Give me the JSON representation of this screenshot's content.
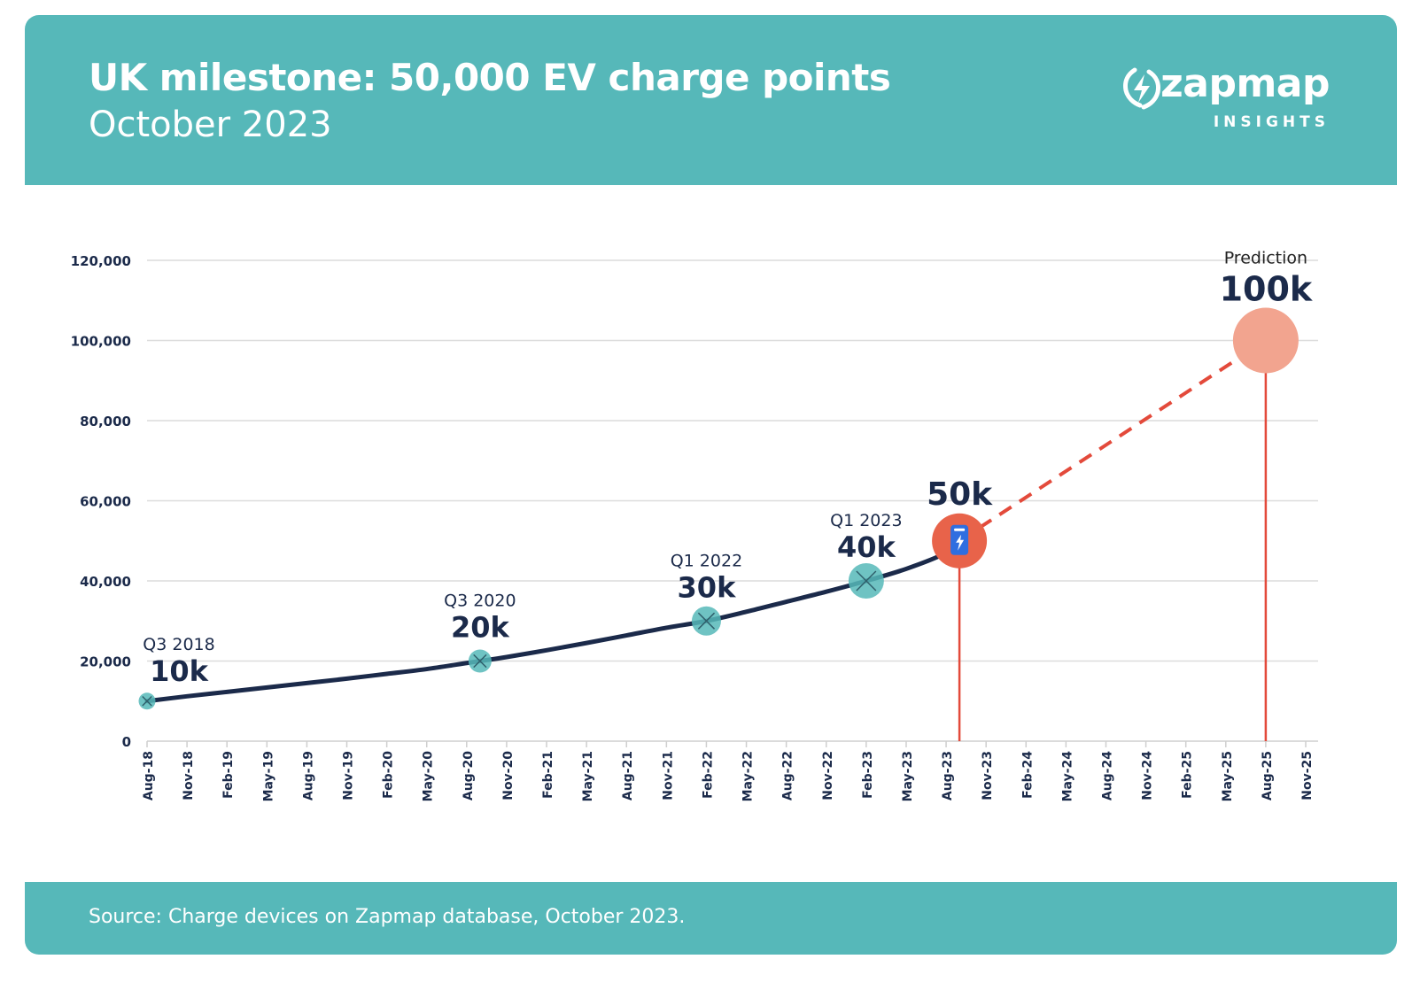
{
  "header": {
    "title": "UK milestone: 50,000 EV charge points",
    "subtitle": "October 2023",
    "brand_name": "zapmap",
    "brand_sub": "INSIGHTS"
  },
  "footer": {
    "source": "Source: Charge devices on Zapmap database, October 2023."
  },
  "colors": {
    "header_bg": "#56b8b9",
    "line": "#1b2a4a",
    "milestone_marker": "#56b8b9",
    "current_marker": "#e8634a",
    "prediction_marker": "#f2a48f",
    "prediction_line": "#e34a3b",
    "grid": "#dcdcdc"
  },
  "chart_data": {
    "type": "line",
    "xlabel": "",
    "ylabel": "",
    "ylim": [
      0,
      120000
    ],
    "yticks": [
      0,
      20000,
      40000,
      60000,
      80000,
      100000,
      120000
    ],
    "ytick_labels": [
      "0",
      "20,000",
      "40,000",
      "60,000",
      "80,000",
      "100,000",
      "120,000"
    ],
    "x_categories": [
      "Aug-18",
      "Nov-18",
      "Feb-19",
      "May-19",
      "Aug-19",
      "Nov-19",
      "Feb-20",
      "May-20",
      "Aug-20",
      "Nov-20",
      "Feb-21",
      "May-21",
      "Aug-21",
      "Nov-21",
      "Feb-22",
      "May-22",
      "Aug-22",
      "Nov-22",
      "Feb-23",
      "May-23",
      "Aug-23",
      "Nov-23",
      "Feb-24",
      "May-24",
      "Aug-24",
      "Nov-24",
      "Feb-25",
      "May-25",
      "Aug-25",
      "Nov-25"
    ],
    "grid": true,
    "series": [
      {
        "style": "solid",
        "points": [
          {
            "x": "Aug-18",
            "y": 10000
          },
          {
            "x": "Nov-18",
            "y": 11200
          },
          {
            "x": "Feb-19",
            "y": 12300
          },
          {
            "x": "May-19",
            "y": 13400
          },
          {
            "x": "Aug-19",
            "y": 14500
          },
          {
            "x": "Nov-19",
            "y": 15600
          },
          {
            "x": "Feb-20",
            "y": 16800
          },
          {
            "x": "May-20",
            "y": 18000
          },
          {
            "x": "Aug-20",
            "y": 19500
          },
          {
            "x": "Sep-20",
            "y": 20000
          },
          {
            "x": "Nov-20",
            "y": 21000
          },
          {
            "x": "Feb-21",
            "y": 22700
          },
          {
            "x": "May-21",
            "y": 24500
          },
          {
            "x": "Aug-21",
            "y": 26400
          },
          {
            "x": "Nov-21",
            "y": 28300
          },
          {
            "x": "Feb-22",
            "y": 30000
          },
          {
            "x": "May-22",
            "y": 32300
          },
          {
            "x": "Aug-22",
            "y": 34800
          },
          {
            "x": "Nov-22",
            "y": 37300
          },
          {
            "x": "Feb-23",
            "y": 40000
          },
          {
            "x": "May-23",
            "y": 43000
          },
          {
            "x": "Aug-23",
            "y": 47000
          },
          {
            "x": "Sep-23",
            "y": 50000
          }
        ]
      },
      {
        "style": "dashed",
        "points": [
          {
            "x": "Sep-23",
            "y": 50000
          },
          {
            "x": "Aug-25",
            "y": 100000
          }
        ]
      }
    ],
    "annotations": [
      {
        "x": "Aug-18",
        "y": 10000,
        "label": "Q3 2018",
        "value": "10k",
        "marker": "milestone"
      },
      {
        "x": "Sep-20",
        "y": 20000,
        "label": "Q3 2020",
        "value": "20k",
        "marker": "milestone"
      },
      {
        "x": "Feb-22",
        "y": 30000,
        "label": "Q1 2022",
        "value": "30k",
        "marker": "milestone"
      },
      {
        "x": "Feb-23",
        "y": 40000,
        "label": "Q1 2023",
        "value": "40k",
        "marker": "milestone"
      },
      {
        "x": "Sep-23",
        "y": 50000,
        "label": "",
        "value": "50k",
        "marker": "current"
      },
      {
        "x": "Aug-25",
        "y": 100000,
        "label": "Prediction",
        "value": "100k",
        "marker": "prediction"
      }
    ]
  }
}
